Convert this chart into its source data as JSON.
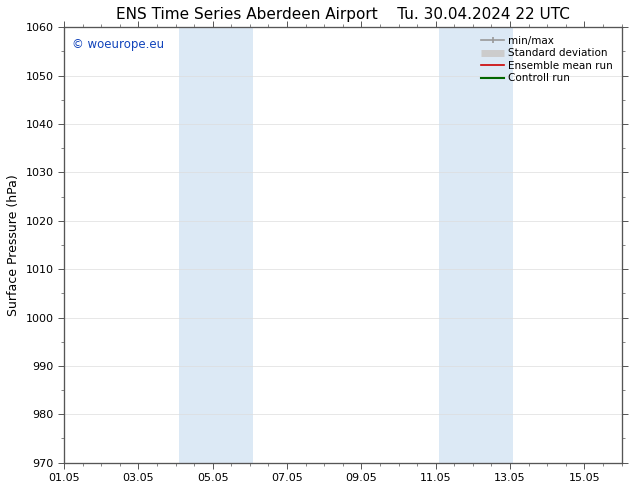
{
  "title": "ENS Time Series Aberdeen Airport",
  "title2": "Tu. 30.04.2024 22 UTC",
  "ylabel": "Surface Pressure (hPa)",
  "ylim": [
    970,
    1060
  ],
  "yticks": [
    970,
    980,
    990,
    1000,
    1010,
    1020,
    1030,
    1040,
    1050,
    1060
  ],
  "xlim": [
    0,
    15
  ],
  "xtick_labels": [
    "01.05",
    "03.05",
    "05.05",
    "07.05",
    "09.05",
    "11.05",
    "13.05",
    "15.05"
  ],
  "xtick_positions": [
    0,
    2,
    4,
    6,
    8,
    10,
    12,
    14
  ],
  "shaded_bands": [
    {
      "x_start": 3.08,
      "x_end": 5.08
    },
    {
      "x_start": 10.08,
      "x_end": 12.08
    }
  ],
  "shaded_color": "#dce9f5",
  "watermark_text": "© woeurope.eu",
  "watermark_color": "#1144bb",
  "legend_items": [
    {
      "label": "min/max",
      "color": "#999999",
      "lw": 1.2,
      "style": "caps"
    },
    {
      "label": "Standard deviation",
      "color": "#cccccc",
      "lw": 5,
      "style": "thick"
    },
    {
      "label": "Ensemble mean run",
      "color": "#cc0000",
      "lw": 1.2,
      "style": "line"
    },
    {
      "label": "Controll run",
      "color": "#006600",
      "lw": 1.5,
      "style": "line"
    }
  ],
  "bg_color": "#ffffff",
  "font_size_title": 11,
  "font_size_axis_label": 9,
  "font_size_ticks": 8,
  "font_size_legend": 7.5,
  "font_size_watermark": 8.5
}
